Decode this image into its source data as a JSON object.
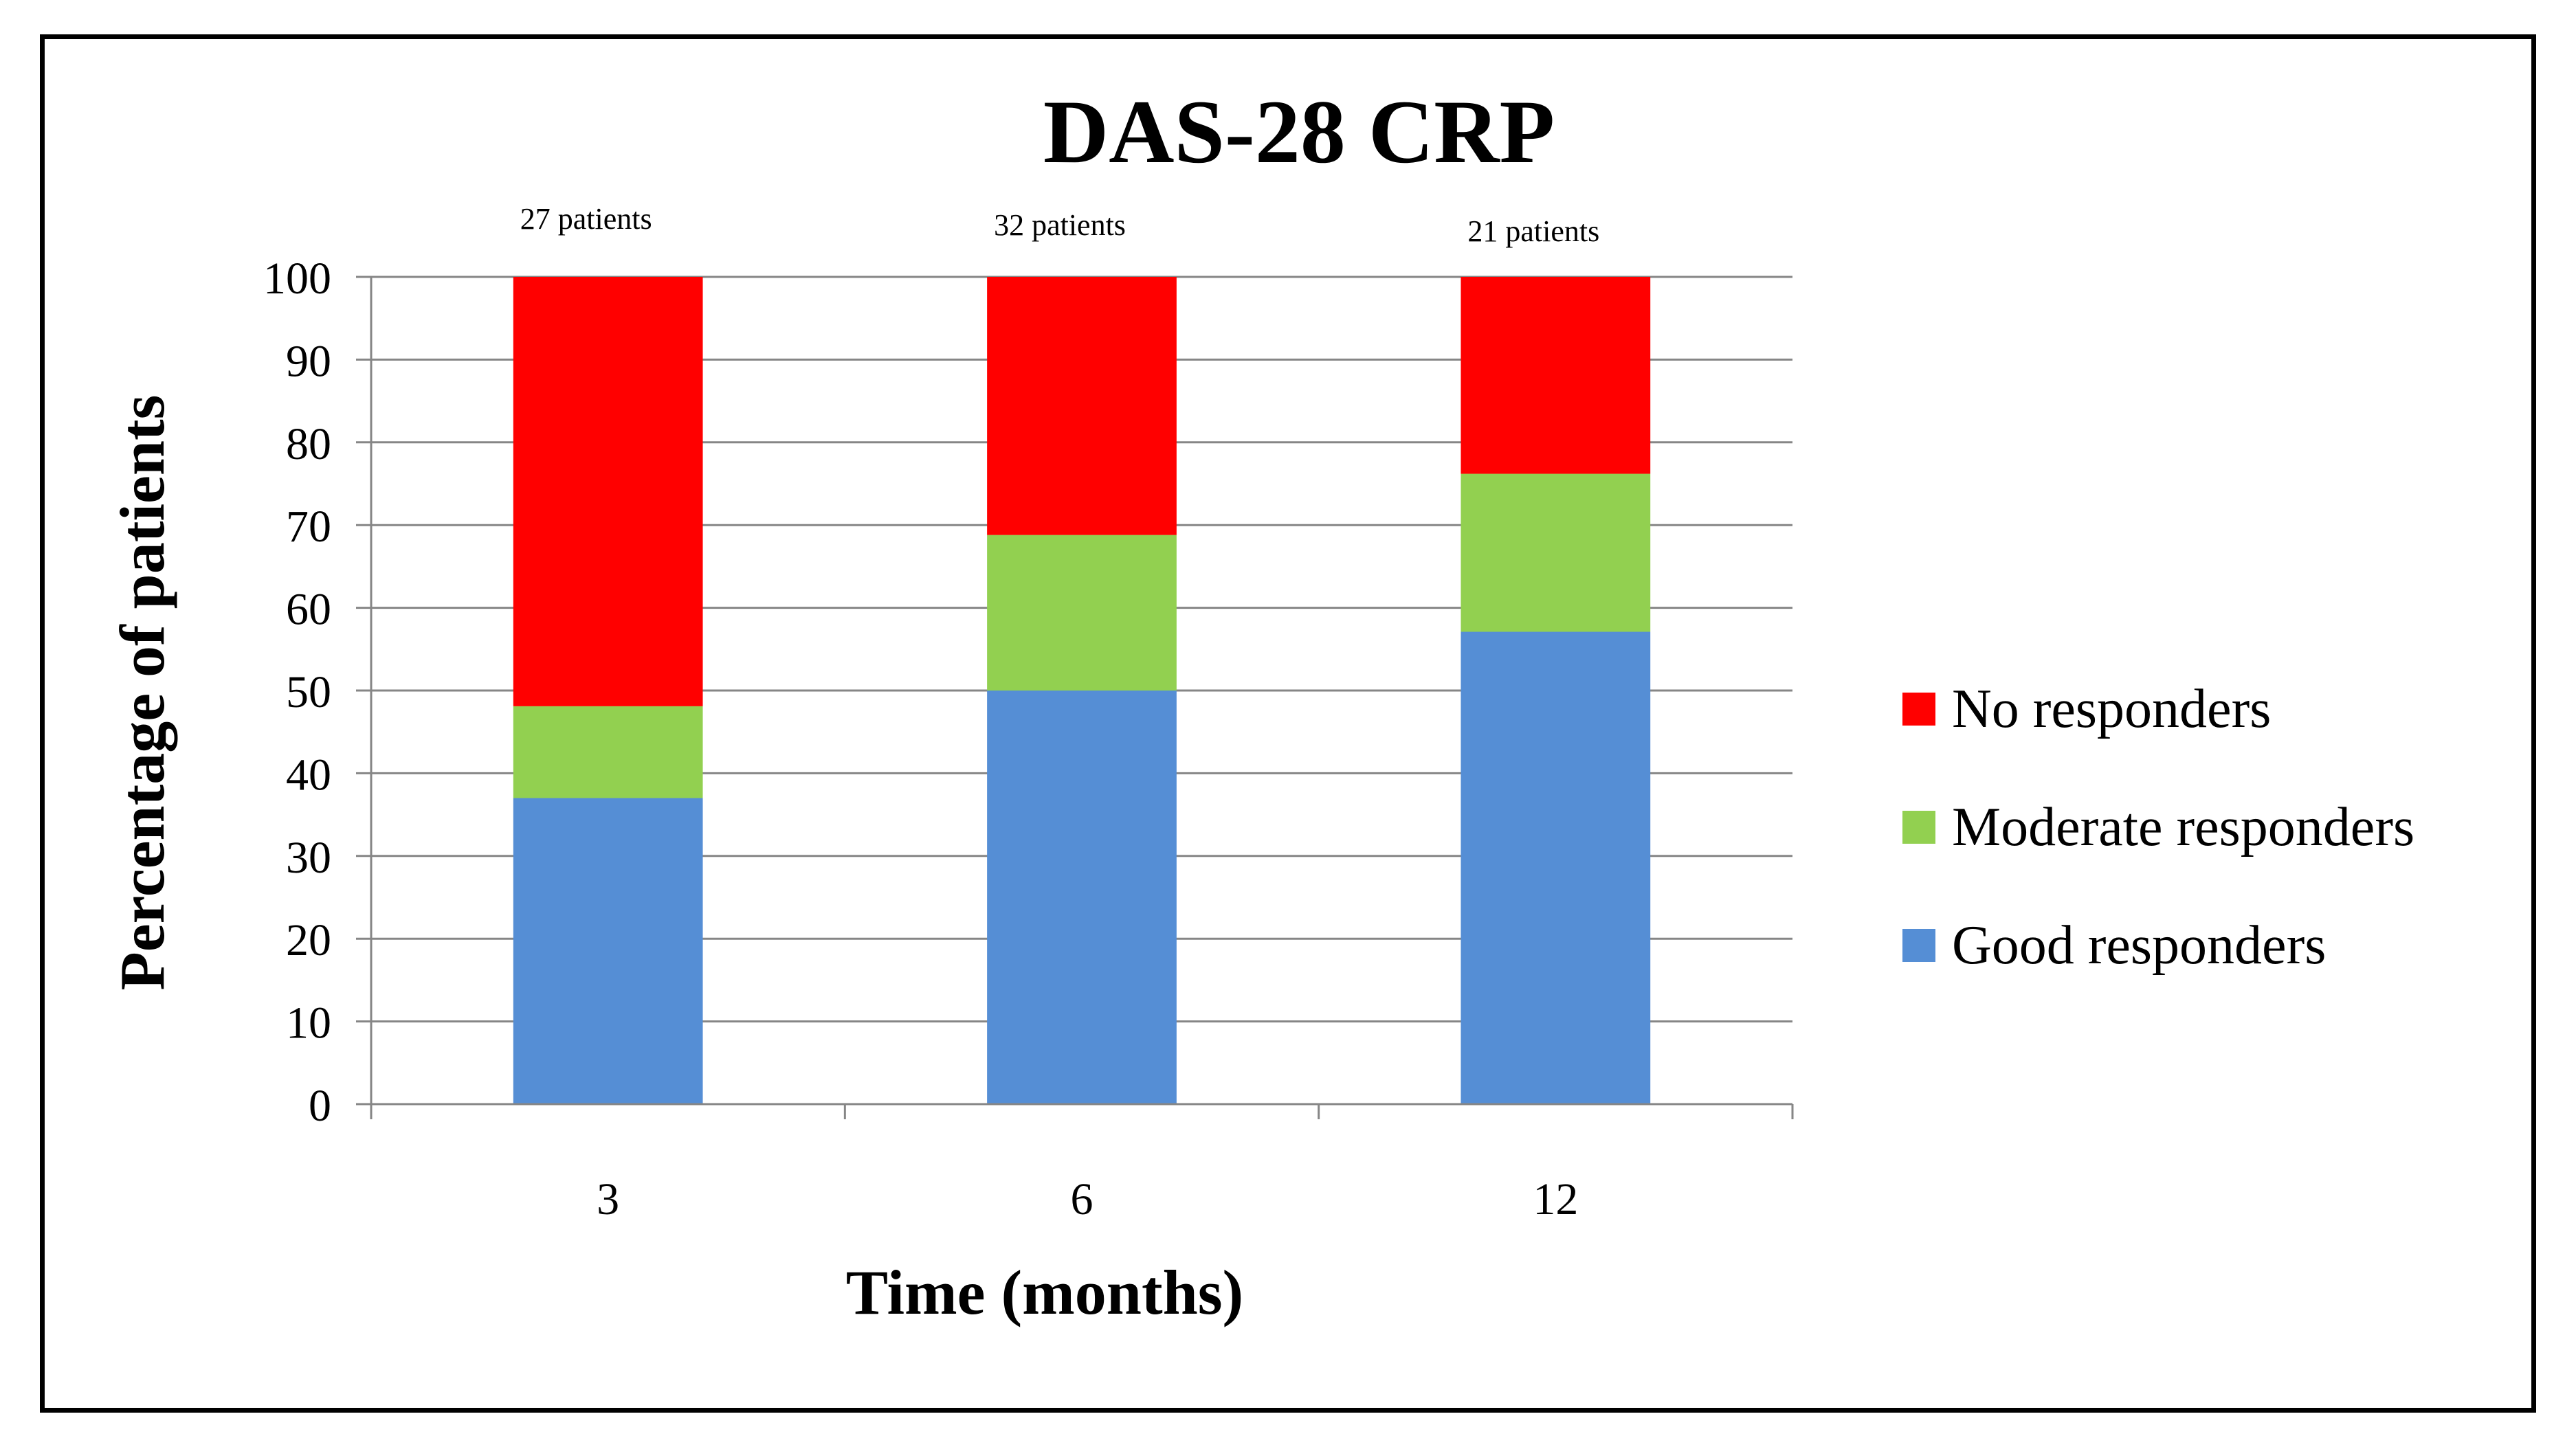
{
  "chart_data": {
    "type": "bar",
    "stacked": true,
    "title": "DAS-28 CRP",
    "xlabel": "Time (months)",
    "ylabel": "Percentage of patients",
    "categories": [
      "3",
      "6",
      "12"
    ],
    "annotations": [
      "27 patients",
      "32 patients",
      "21 patients"
    ],
    "ylim": [
      0,
      100
    ],
    "yticks": [
      0,
      10,
      20,
      30,
      40,
      50,
      60,
      70,
      80,
      90,
      100
    ],
    "grid": true,
    "legend_position": "right",
    "series": [
      {
        "name": "Good responders",
        "values": [
          37,
          50,
          57.1
        ],
        "color": "#558ed5"
      },
      {
        "name": "Moderate responders",
        "values": [
          11.1,
          18.8,
          19.1
        ],
        "color": "#92d050"
      },
      {
        "name": "No responders",
        "values": [
          51.9,
          31.2,
          23.8
        ],
        "color": "#ff0000"
      }
    ],
    "legend_order": [
      "No responders",
      "Moderate responders",
      "Good responders"
    ]
  }
}
